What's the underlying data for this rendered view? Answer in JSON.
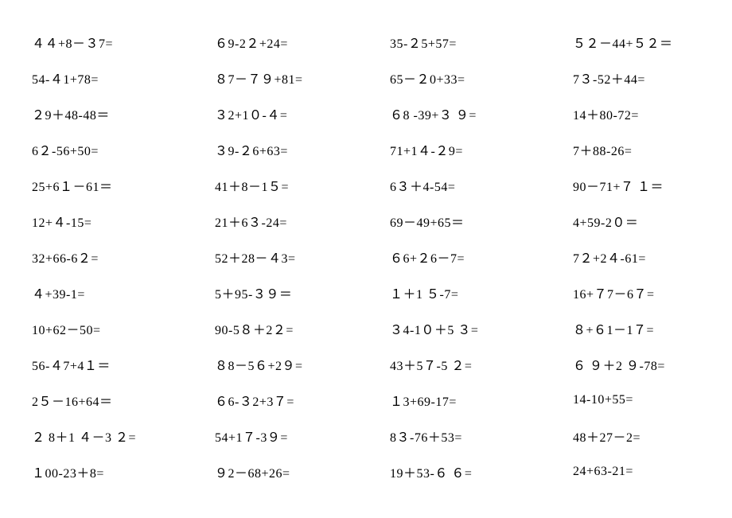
{
  "rows": [
    [
      "４４+8－３7=",
      "６9-2２+24=",
      "35-２5+57=",
      "５２－44+５２＝"
    ],
    [
      "54-４1+78=",
      "８7－７９+81=",
      "65－２0+33=",
      "7３-52＋44="
    ],
    [
      "２9＋48-48＝",
      "３2+1０-４=",
      "６8 -39+３ ９=",
      "14＋80-72="
    ],
    [
      "6２-56+50=",
      "３9-２6+63=",
      "71+1４-２9=",
      "7＋88-26="
    ],
    [
      "25+6１－61＝",
      "41＋8－1５=",
      "6３＋4-54=",
      "90－71+７ １＝"
    ],
    [
      "12+４-15=",
      "21＋6３-24=",
      "69－49+65＝",
      "4+59-2０＝"
    ],
    [
      "32+66-6２=",
      "52＋28－４3=",
      "６6+２6－7=",
      "7２+2４-61="
    ],
    [
      "４+39-1=",
      "5＋95-３９＝",
      "１＋1 ５-7=",
      "16+７7－6７="
    ],
    [
      "10+62－50=",
      "90-5８＋2２=",
      "３4-1０＋5 ３=",
      "８+６1－1７="
    ],
    [
      "56-４7+4１＝",
      "８8－5６+2９=",
      "43＋5７-5 ２=",
      "６ ９＋2 ９-78="
    ],
    [
      "2５－16+64＝",
      "６6-３2+3７=",
      "１3+69-17=",
      "14-10+55="
    ],
    [
      "２ 8＋1 ４－3 ２=",
      "54+1７-3９=",
      "8３-76＋53=",
      "48＋27－2="
    ],
    [
      "１00-23＋8=",
      "９2－68+26=",
      "19＋53-６ ６=",
      "24+63-21="
    ]
  ]
}
